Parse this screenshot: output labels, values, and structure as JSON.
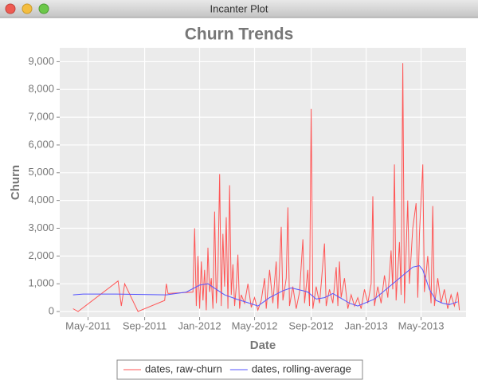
{
  "window_title": "Incanter Plot",
  "chart_data": {
    "type": "line",
    "title": "Churn Trends",
    "x_label": "Date",
    "y_label": "Churn",
    "xlim": [
      2011.16,
      2013.6
    ],
    "xticks": [
      {
        "value": 2011.33,
        "label": "May-2011"
      },
      {
        "value": 2011.67,
        "label": "Sep-2011"
      },
      {
        "value": 2012.0,
        "label": "Jan-2012"
      },
      {
        "value": 2012.33,
        "label": "May-2012"
      },
      {
        "value": 2012.67,
        "label": "Sep-2012"
      },
      {
        "value": 2013.0,
        "label": "Jan-2013"
      },
      {
        "value": 2013.33,
        "label": "May-2013"
      }
    ],
    "ylim": [
      -200,
      9500
    ],
    "yticks": [
      0,
      {
        "value": 1000,
        "label": "1,000"
      },
      {
        "value": 2000,
        "label": "2,000"
      },
      {
        "value": 3000,
        "label": "3,000"
      },
      {
        "value": 4000,
        "label": "4,000"
      },
      {
        "value": 5000,
        "label": "5,000"
      },
      {
        "value": 6000,
        "label": "6,000"
      },
      {
        "value": 7000,
        "label": "7,000"
      },
      {
        "value": 8000,
        "label": "8,000"
      },
      {
        "value": 9000,
        "label": "9,000"
      }
    ],
    "grid": true,
    "legend": "bottom",
    "series": [
      {
        "name": "dates, raw-churn",
        "color": "#ff5555",
        "x": [
          2011.24,
          2011.27,
          2011.51,
          2011.53,
          2011.55,
          2011.63,
          2011.79,
          2011.8,
          2011.81,
          2011.96,
          2011.97,
          2011.98,
          2011.99,
          2012.0,
          2012.01,
          2012.02,
          2012.03,
          2012.04,
          2012.05,
          2012.06,
          2012.07,
          2012.08,
          2012.09,
          2012.1,
          2012.11,
          2012.12,
          2012.13,
          2012.14,
          2012.15,
          2012.16,
          2012.17,
          2012.18,
          2012.19,
          2012.2,
          2012.21,
          2012.22,
          2012.23,
          2012.24,
          2012.25,
          2012.27,
          2012.29,
          2012.31,
          2012.33,
          2012.35,
          2012.37,
          2012.39,
          2012.4,
          2012.42,
          2012.44,
          2012.46,
          2012.47,
          2012.49,
          2012.5,
          2012.52,
          2012.53,
          2012.54,
          2012.56,
          2012.58,
          2012.6,
          2012.62,
          2012.63,
          2012.65,
          2012.66,
          2012.67,
          2012.68,
          2012.7,
          2012.72,
          2012.73,
          2012.75,
          2012.76,
          2012.78,
          2012.8,
          2012.82,
          2012.83,
          2012.84,
          2012.85,
          2012.87,
          2012.89,
          2012.91,
          2012.93,
          2012.95,
          2012.97,
          2012.99,
          2013.01,
          2013.03,
          2013.04,
          2013.05,
          2013.07,
          2013.09,
          2013.11,
          2013.13,
          2013.15,
          2013.16,
          2013.17,
          2013.18,
          2013.2,
          2013.21,
          2013.22,
          2013.23,
          2013.25,
          2013.26,
          2013.28,
          2013.3,
          2013.31,
          2013.32,
          2013.34,
          2013.35,
          2013.37,
          2013.39,
          2013.4,
          2013.41,
          2013.43,
          2013.45,
          2013.47,
          2013.49,
          2013.51,
          2013.53,
          2013.55,
          2013.56
        ],
        "values": [
          100,
          0,
          1100,
          200,
          1000,
          0,
          400,
          1000,
          650,
          700,
          3000,
          200,
          2000,
          100,
          1800,
          400,
          1500,
          50,
          2300,
          700,
          1200,
          100,
          3600,
          300,
          1500,
          4950,
          200,
          2800,
          900,
          3400,
          100,
          4550,
          600,
          1700,
          200,
          900,
          2050,
          100,
          600,
          300,
          1000,
          150,
          500,
          50,
          400,
          1200,
          100,
          1500,
          300,
          1800,
          100,
          3050,
          400,
          1200,
          3750,
          200,
          900,
          100,
          700,
          2600,
          300,
          1500,
          200,
          7300,
          100,
          900,
          300,
          1000,
          2450,
          200,
          800,
          300,
          1600,
          200,
          1800,
          500,
          1200,
          100,
          600,
          200,
          500,
          100,
          800,
          300,
          1000,
          4150,
          200,
          900,
          300,
          1300,
          500,
          2200,
          800,
          5300,
          400,
          2500,
          600,
          8950,
          300,
          4000,
          1000,
          3000,
          3900,
          500,
          2800,
          5300,
          700,
          2000,
          300,
          3800,
          200,
          1200,
          300,
          800,
          100,
          600,
          200,
          700,
          50
        ]
      },
      {
        "name": "dates, rolling-average",
        "color": "#5555ff",
        "x": [
          2011.24,
          2011.3,
          2011.5,
          2011.8,
          2011.92,
          2012.0,
          2012.05,
          2012.1,
          2012.15,
          2012.22,
          2012.3,
          2012.35,
          2012.42,
          2012.5,
          2012.55,
          2012.62,
          2012.65,
          2012.7,
          2012.75,
          2012.8,
          2012.9,
          2012.95,
          2013.05,
          2013.1,
          2013.2,
          2013.28,
          2013.32,
          2013.34,
          2013.38,
          2013.42,
          2013.46,
          2013.5,
          2013.55
        ],
        "values": [
          600,
          630,
          630,
          600,
          700,
          950,
          1000,
          800,
          600,
          450,
          300,
          200,
          500,
          750,
          850,
          750,
          700,
          450,
          500,
          650,
          300,
          200,
          450,
          700,
          1200,
          1600,
          1650,
          1500,
          800,
          400,
          300,
          250,
          350
        ]
      }
    ]
  }
}
